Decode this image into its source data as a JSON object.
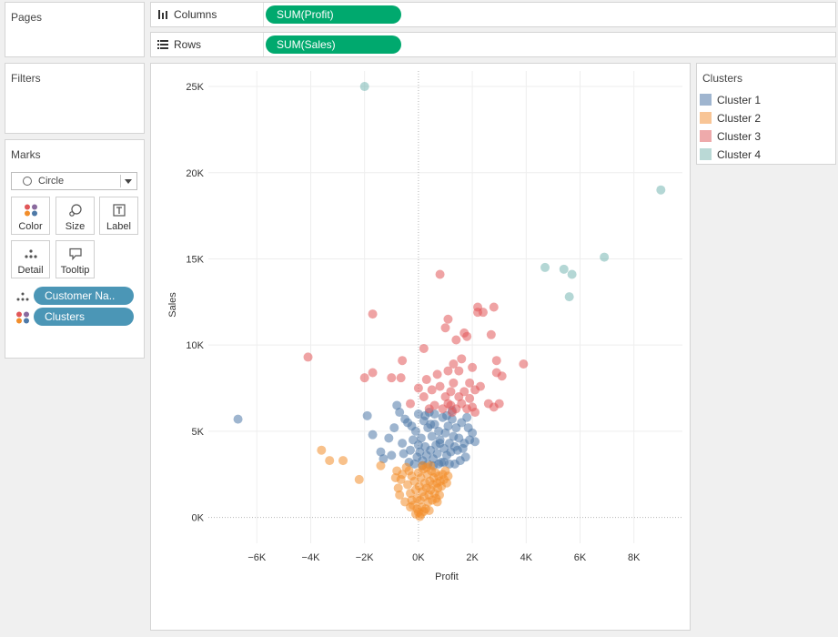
{
  "pages": {
    "title": "Pages"
  },
  "filters": {
    "title": "Filters"
  },
  "marks": {
    "title": "Marks",
    "mark_type": "Circle",
    "buttons": [
      {
        "label": "Color",
        "icon": "color-dots-icon"
      },
      {
        "label": "Size",
        "icon": "size-icon"
      },
      {
        "label": "Label",
        "icon": "label-icon"
      },
      {
        "label": "Detail",
        "icon": "detail-icon"
      },
      {
        "label": "Tooltip",
        "icon": "tooltip-icon"
      }
    ],
    "fields": [
      {
        "label": "Customer Na..",
        "icon": "detail-icon"
      },
      {
        "label": "Clusters",
        "icon": "color-dots-icon"
      }
    ]
  },
  "shelves": {
    "columns": {
      "label": "Columns",
      "pill": "SUM(Profit)"
    },
    "rows": {
      "label": "Rows",
      "pill": "SUM(Sales)"
    }
  },
  "legend": {
    "title": "Clusters",
    "items": [
      {
        "label": "Cluster 1",
        "color": "#4e79a7"
      },
      {
        "label": "Cluster 2",
        "color": "#f28e2b"
      },
      {
        "label": "Cluster 3",
        "color": "#e15759"
      },
      {
        "label": "Cluster 4",
        "color": "#76b7b2"
      }
    ]
  },
  "chart_data": {
    "type": "scatter",
    "xlabel": "Profit",
    "ylabel": "Sales",
    "xlim": [
      -7800,
      9800
    ],
    "ylim": [
      -1500,
      25900
    ],
    "x_ticks": [
      -6000,
      -4000,
      -2000,
      0,
      2000,
      4000,
      6000,
      8000
    ],
    "x_tick_labels": [
      "−6K",
      "−4K",
      "−2K",
      "0K",
      "2K",
      "4K",
      "6K",
      "8K"
    ],
    "y_ticks": [
      0,
      5000,
      10000,
      15000,
      20000,
      25000
    ],
    "y_tick_labels": [
      "0K",
      "5K",
      "10K",
      "15K",
      "20K",
      "25K"
    ],
    "grid": true,
    "series": [
      {
        "name": "Cluster 1",
        "color": "#4e79a7",
        "points": [
          [
            -6700,
            5700
          ],
          [
            -1900,
            5900
          ],
          [
            -1700,
            4800
          ],
          [
            -1400,
            3800
          ],
          [
            -1300,
            3400
          ],
          [
            -1100,
            4600
          ],
          [
            -1000,
            3600
          ],
          [
            -900,
            5200
          ],
          [
            -800,
            6500
          ],
          [
            -700,
            6100
          ],
          [
            -600,
            4300
          ],
          [
            -500,
            5700
          ],
          [
            -400,
            5500
          ],
          [
            -300,
            3900
          ],
          [
            -200,
            4500
          ],
          [
            -100,
            5000
          ],
          [
            -50,
            3500
          ],
          [
            0,
            4200
          ],
          [
            50,
            3800
          ],
          [
            100,
            4600
          ],
          [
            150,
            3300
          ],
          [
            200,
            5600
          ],
          [
            250,
            4100
          ],
          [
            300,
            3600
          ],
          [
            350,
            5200
          ],
          [
            400,
            6100
          ],
          [
            450,
            3900
          ],
          [
            500,
            4700
          ],
          [
            550,
            3400
          ],
          [
            600,
            5400
          ],
          [
            650,
            4200
          ],
          [
            700,
            3700
          ],
          [
            750,
            5000
          ],
          [
            800,
            4500
          ],
          [
            850,
            3200
          ],
          [
            900,
            5800
          ],
          [
            950,
            4000
          ],
          [
            1000,
            4900
          ],
          [
            1050,
            3600
          ],
          [
            1100,
            5300
          ],
          [
            1150,
            4300
          ],
          [
            1200,
            3800
          ],
          [
            1250,
            5700
          ],
          [
            1300,
            4700
          ],
          [
            1350,
            4100
          ],
          [
            1400,
            5200
          ],
          [
            1450,
            3900
          ],
          [
            1500,
            4600
          ],
          [
            1600,
            5500
          ],
          [
            1700,
            4300
          ],
          [
            1800,
            5800
          ],
          [
            1900,
            4500
          ],
          [
            2000,
            4900
          ],
          [
            2100,
            4400
          ],
          [
            1750,
            3500
          ],
          [
            1550,
            3300
          ],
          [
            1350,
            3100
          ],
          [
            1150,
            3100
          ],
          [
            950,
            3200
          ],
          [
            750,
            3100
          ],
          [
            550,
            3000
          ],
          [
            350,
            3100
          ],
          [
            150,
            3000
          ],
          [
            -150,
            3100
          ],
          [
            -350,
            3200
          ],
          [
            -550,
            3700
          ],
          [
            1650,
            4000
          ],
          [
            1850,
            5200
          ],
          [
            250,
            5900
          ],
          [
            600,
            6000
          ],
          [
            0,
            6000
          ],
          [
            1250,
            6200
          ],
          [
            450,
            5400
          ],
          [
            -250,
            5300
          ],
          [
            1050,
            5900
          ],
          [
            800,
            4300
          ]
        ]
      },
      {
        "name": "Cluster 2",
        "color": "#f28e2b",
        "points": [
          [
            -3600,
            3900
          ],
          [
            -3300,
            3300
          ],
          [
            -2800,
            3300
          ],
          [
            -2200,
            2200
          ],
          [
            -1400,
            3000
          ],
          [
            -850,
            2300
          ],
          [
            -750,
            1700
          ],
          [
            -700,
            1300
          ],
          [
            -600,
            2500
          ],
          [
            -500,
            900
          ],
          [
            -450,
            2900
          ],
          [
            -400,
            1900
          ],
          [
            -350,
            2700
          ],
          [
            -300,
            1400
          ],
          [
            -250,
            2400
          ],
          [
            -200,
            700
          ],
          [
            -150,
            2100
          ],
          [
            -100,
            1600
          ],
          [
            -50,
            1100
          ],
          [
            0,
            2600
          ],
          [
            0,
            300
          ],
          [
            30,
            1800
          ],
          [
            60,
            1000
          ],
          [
            90,
            2300
          ],
          [
            120,
            600
          ],
          [
            150,
            1500
          ],
          [
            180,
            2800
          ],
          [
            210,
            1200
          ],
          [
            240,
            2000
          ],
          [
            270,
            500
          ],
          [
            300,
            1700
          ],
          [
            330,
            2500
          ],
          [
            360,
            900
          ],
          [
            390,
            1300
          ],
          [
            420,
            2100
          ],
          [
            450,
            1600
          ],
          [
            480,
            2700
          ],
          [
            510,
            1000
          ],
          [
            540,
            1900
          ],
          [
            570,
            2300
          ],
          [
            600,
            1400
          ],
          [
            630,
            2600
          ],
          [
            660,
            1100
          ],
          [
            690,
            2000
          ],
          [
            720,
            1700
          ],
          [
            750,
            2400
          ],
          [
            780,
            1300
          ],
          [
            810,
            2100
          ],
          [
            850,
            1800
          ],
          [
            900,
            2500
          ],
          [
            950,
            2200
          ],
          [
            1000,
            2700
          ],
          [
            1050,
            2000
          ],
          [
            1100,
            2400
          ],
          [
            -800,
            2700
          ],
          [
            -650,
            2200
          ],
          [
            50,
            50
          ],
          [
            100,
            200
          ],
          [
            200,
            350
          ],
          [
            -100,
            200
          ],
          [
            -50,
            500
          ],
          [
            400,
            400
          ],
          [
            -300,
            600
          ],
          [
            700,
            900
          ],
          [
            150,
            3000
          ],
          [
            450,
            3000
          ],
          [
            -250,
            1000
          ],
          [
            300,
            2900
          ]
        ]
      },
      {
        "name": "Cluster 3",
        "color": "#e15759",
        "points": [
          [
            -4100,
            9300
          ],
          [
            -2000,
            8100
          ],
          [
            -1700,
            8400
          ],
          [
            -1700,
            11800
          ],
          [
            -1000,
            8100
          ],
          [
            -650,
            8100
          ],
          [
            -600,
            9100
          ],
          [
            -300,
            6600
          ],
          [
            0,
            7500
          ],
          [
            200,
            9800
          ],
          [
            200,
            7000
          ],
          [
            300,
            8000
          ],
          [
            400,
            6300
          ],
          [
            500,
            7400
          ],
          [
            600,
            6500
          ],
          [
            700,
            8300
          ],
          [
            800,
            14100
          ],
          [
            800,
            7600
          ],
          [
            900,
            6300
          ],
          [
            1000,
            11000
          ],
          [
            1000,
            7000
          ],
          [
            1100,
            8500
          ],
          [
            1100,
            6600
          ],
          [
            1100,
            11500
          ],
          [
            1200,
            7300
          ],
          [
            1200,
            6500
          ],
          [
            1300,
            8900
          ],
          [
            1300,
            7800
          ],
          [
            1400,
            10300
          ],
          [
            1400,
            6300
          ],
          [
            1500,
            7000
          ],
          [
            1500,
            8500
          ],
          [
            1600,
            6600
          ],
          [
            1700,
            7300
          ],
          [
            1700,
            10700
          ],
          [
            1800,
            10500
          ],
          [
            1800,
            6300
          ],
          [
            1900,
            6900
          ],
          [
            1900,
            7800
          ],
          [
            2000,
            6400
          ],
          [
            2000,
            8700
          ],
          [
            2100,
            6100
          ],
          [
            2100,
            7400
          ],
          [
            2200,
            11900
          ],
          [
            2200,
            12200
          ],
          [
            2400,
            11900
          ],
          [
            2600,
            6600
          ],
          [
            2700,
            10600
          ],
          [
            2800,
            12200
          ],
          [
            2800,
            6400
          ],
          [
            2900,
            9100
          ],
          [
            2900,
            8400
          ],
          [
            3000,
            6600
          ],
          [
            3100,
            8200
          ],
          [
            3900,
            8900
          ],
          [
            1250,
            6100
          ],
          [
            2300,
            7600
          ],
          [
            1600,
            9200
          ]
        ]
      },
      {
        "name": "Cluster 4",
        "color": "#76b7b2",
        "points": [
          [
            -2000,
            25000
          ],
          [
            4700,
            14500
          ],
          [
            5400,
            14400
          ],
          [
            5600,
            12800
          ],
          [
            5700,
            14100
          ],
          [
            6900,
            15100
          ],
          [
            9000,
            19000
          ]
        ]
      }
    ]
  }
}
